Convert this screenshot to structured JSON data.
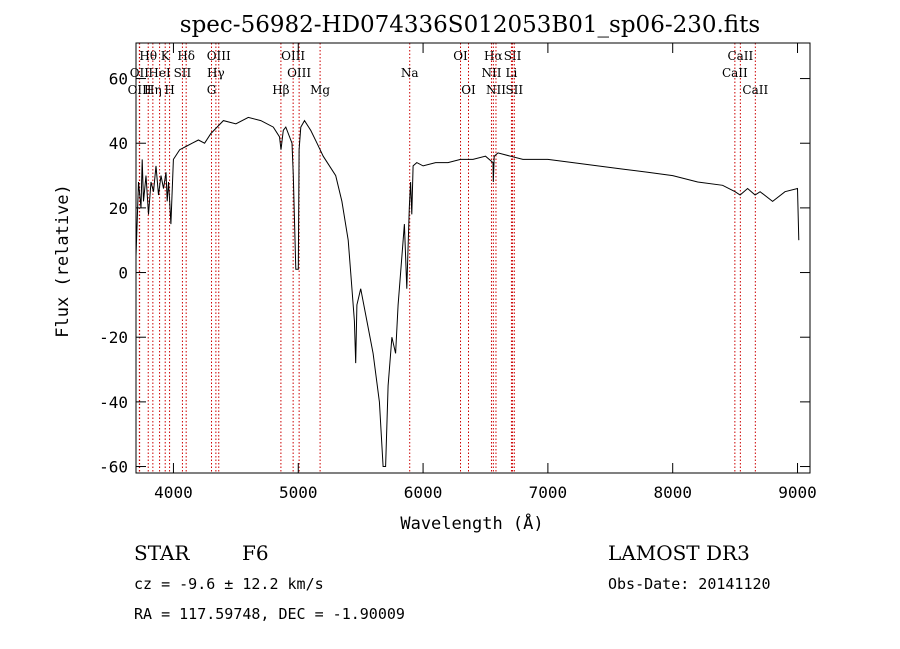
{
  "chart_data": {
    "type": "line",
    "title": "spec-56982-HD074336S012053B01_sp06-230.fits",
    "xlabel": "Wavelength (Å)",
    "ylabel": "Flux (relative)",
    "xlim": [
      3700,
      9100
    ],
    "ylim": [
      -62,
      71
    ],
    "x_ticks": [
      4000,
      5000,
      6000,
      7000,
      8000,
      9000
    ],
    "y_ticks": [
      -60,
      -40,
      -20,
      0,
      20,
      40,
      60
    ],
    "grid": false,
    "series": [
      {
        "values_x": [
          3700,
          3720,
          3740,
          3750,
          3760,
          3780,
          3800,
          3820,
          3840,
          3860,
          3880,
          3900,
          3920,
          3940,
          3950,
          3960,
          3970,
          3980,
          4000,
          4050,
          4100,
          4150,
          4200,
          4250,
          4300,
          4350,
          4400,
          4500,
          4600,
          4700,
          4800,
          4850,
          4862,
          4880,
          4900,
          4950,
          4960,
          4980,
          5000,
          5007,
          5020,
          5050,
          5100,
          5150,
          5200,
          5300,
          5350,
          5400,
          5420,
          5450,
          5460,
          5470,
          5500,
          5550,
          5600,
          5650,
          5680,
          5700,
          5720,
          5750,
          5780,
          5800,
          5850,
          5870,
          5890,
          5900,
          5910,
          5920,
          5950,
          6000,
          6100,
          6200,
          6300,
          6400,
          6500,
          6560,
          6563,
          6570,
          6600,
          6700,
          6800,
          6900,
          7000,
          7200,
          7400,
          7600,
          7800,
          8000,
          8200,
          8400,
          8500,
          8540,
          8600,
          8660,
          8700,
          8800,
          8900,
          9000,
          9010
        ],
        "values_y": [
          5,
          28,
          20,
          35,
          22,
          30,
          18,
          28,
          25,
          33,
          24,
          30,
          26,
          31,
          22,
          28,
          22,
          15,
          35,
          38,
          39,
          40,
          41,
          40,
          43,
          45,
          47,
          46,
          48,
          47,
          45,
          42,
          38,
          44,
          45,
          40,
          30,
          1,
          1,
          38,
          45,
          47,
          44,
          40,
          36,
          30,
          22,
          10,
          0,
          -15,
          -28,
          -10,
          -5,
          -15,
          -25,
          -40,
          -60,
          -60,
          -35,
          -20,
          -25,
          -10,
          15,
          -5,
          20,
          28,
          18,
          33,
          34,
          33,
          34,
          34,
          35,
          35,
          36,
          34,
          28,
          36,
          37,
          36,
          35,
          35,
          35,
          34,
          33,
          32,
          31,
          30,
          28,
          27,
          25,
          24,
          26,
          24,
          25,
          22,
          25,
          26,
          10
        ]
      }
    ],
    "line_markers": [
      {
        "name": "Hθ",
        "x": 3798,
        "row": 1
      },
      {
        "name": "OII",
        "x": 3727,
        "row": 2
      },
      {
        "name": "OIII",
        "x": 3729,
        "row": 3
      },
      {
        "name": "Hη",
        "x": 3835,
        "row": 3
      },
      {
        "name": "K",
        "x": 3934,
        "row": 1
      },
      {
        "name": "HeI",
        "x": 3889,
        "row": 2
      },
      {
        "name": "H",
        "x": 3969,
        "row": 3
      },
      {
        "name": "Hδ",
        "x": 4102,
        "row": 1
      },
      {
        "name": "SII",
        "x": 4072,
        "row": 2
      },
      {
        "name": "OIII",
        "x": 4363,
        "row": 1
      },
      {
        "name": "Hγ",
        "x": 4340,
        "row": 2
      },
      {
        "name": "G",
        "x": 4305,
        "row": 3
      },
      {
        "name": "Hβ",
        "x": 4861,
        "row": 3
      },
      {
        "name": "OIII",
        "x": 4959,
        "row": 1
      },
      {
        "name": "OIII",
        "x": 5007,
        "row": 2
      },
      {
        "name": "Mg",
        "x": 5175,
        "row": 3
      },
      {
        "name": "Na",
        "x": 5893,
        "row": 2
      },
      {
        "name": "OI",
        "x": 6300,
        "row": 1
      },
      {
        "name": "OI",
        "x": 6364,
        "row": 3
      },
      {
        "name": "Hα",
        "x": 6563,
        "row": 1
      },
      {
        "name": "NII",
        "x": 6548,
        "row": 2
      },
      {
        "name": "NII",
        "x": 6584,
        "row": 3
      },
      {
        "name": "SII",
        "x": 6717,
        "row": 1
      },
      {
        "name": "Li",
        "x": 6708,
        "row": 2
      },
      {
        "name": "SII",
        "x": 6731,
        "row": 3
      },
      {
        "name": "CaII",
        "x": 8542,
        "row": 1
      },
      {
        "name": "CaII",
        "x": 8498,
        "row": 2
      },
      {
        "name": "CaII",
        "x": 8662,
        "row": 3
      }
    ],
    "line_color": "#000000",
    "marker_color": "#cc0000"
  },
  "info": {
    "object_class": "STAR",
    "subclass": "F6",
    "survey": "LAMOST DR3",
    "cz": "cz = -9.6 ± 12.2 km/s",
    "obs_date": "Obs-Date: 20141120",
    "coords": "RA = 117.59748, DEC =  -1.90009"
  }
}
